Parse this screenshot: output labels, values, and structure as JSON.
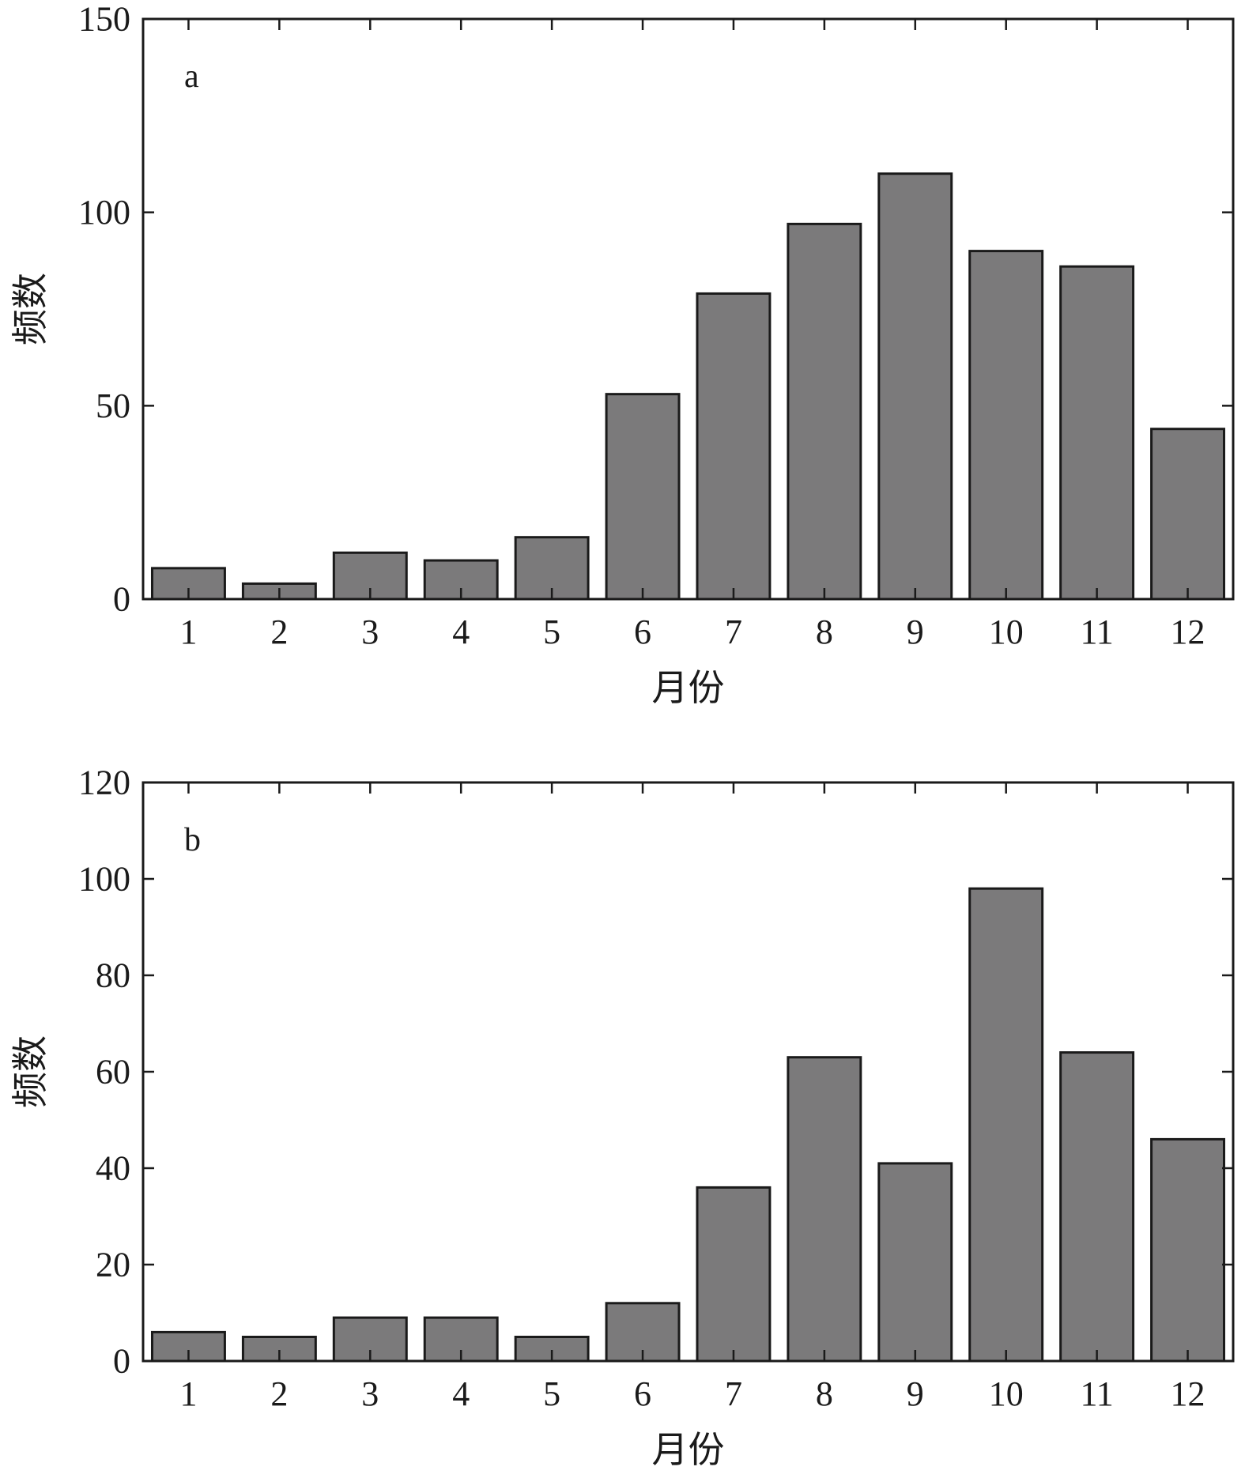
{
  "chart_data": [
    {
      "type": "bar",
      "panel_label": "a",
      "categories": [
        "1",
        "2",
        "3",
        "4",
        "5",
        "6",
        "7",
        "8",
        "9",
        "10",
        "11",
        "12"
      ],
      "values": [
        8,
        4,
        12,
        10,
        16,
        53,
        79,
        97,
        110,
        90,
        86,
        44
      ],
      "xlabel": "月份",
      "ylabel": "频数",
      "ylim": [
        0,
        150
      ],
      "yticks": [
        0,
        50,
        100,
        150
      ],
      "bar_color": "#7b7a7b",
      "grid": false
    },
    {
      "type": "bar",
      "panel_label": "b",
      "categories": [
        "1",
        "2",
        "3",
        "4",
        "5",
        "6",
        "7",
        "8",
        "9",
        "10",
        "11",
        "12"
      ],
      "values": [
        6,
        5,
        9,
        9,
        5,
        12,
        36,
        63,
        41,
        98,
        64,
        46
      ],
      "xlabel": "月份",
      "ylabel": "频数",
      "ylim": [
        0,
        120
      ],
      "yticks": [
        0,
        20,
        40,
        60,
        80,
        100,
        120
      ],
      "bar_color": "#7b7a7b",
      "grid": false
    }
  ]
}
